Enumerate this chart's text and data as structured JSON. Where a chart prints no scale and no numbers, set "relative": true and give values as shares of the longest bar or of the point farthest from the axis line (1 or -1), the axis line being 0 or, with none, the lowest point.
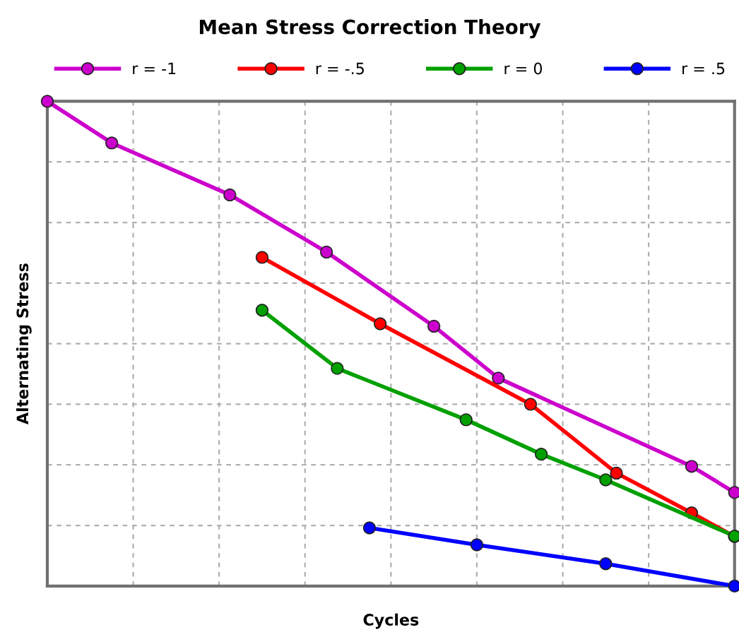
{
  "chart_data": {
    "type": "line",
    "title": "Mean Stress Correction Theory",
    "xlabel": "Cycles",
    "ylabel": "Alternating Stress",
    "relative": true,
    "grid": true,
    "legend": "top",
    "marker": "circle",
    "line_style": "solid",
    "categories": [
      null,
      null,
      null,
      null,
      null,
      null,
      null,
      null,
      null,
      null,
      null,
      null,
      null,
      null,
      null,
      null,
      null,
      null,
      null,
      null,
      null,
      null,
      null,
      null,
      null,
      null,
      null,
      null,
      null,
      null,
      null,
      null,
      null,
      null,
      null,
      null,
      null,
      null,
      null,
      null,
      null,
      null,
      null,
      null,
      null,
      null,
      null,
      null,
      null,
      null,
      null,
      null,
      null,
      null,
      null,
      null,
      null,
      null,
      null,
      null,
      null,
      null,
      null,
      null,
      null
    ],
    "series": [
      {
        "name": "r = -1",
        "color": "#cc00cc",
        "values": [
          1,
          null,
          null,
          null,
          null,
          null,
          0.914,
          null,
          null,
          null,
          null,
          null,
          null,
          null,
          null,
          null,
          null,
          0.807,
          null,
          null,
          null,
          null,
          null,
          null,
          null,
          null,
          0.689,
          null,
          null,
          null,
          null,
          null,
          null,
          null,
          null,
          null,
          0.536,
          null,
          null,
          null,
          null,
          null,
          0.429,
          null,
          null,
          null,
          null,
          null,
          null,
          null,
          null,
          null,
          null,
          null,
          null,
          null,
          null,
          null,
          null,
          null,
          0.247,
          null,
          null,
          null,
          0.193
        ]
      },
      {
        "name": "r = -.5",
        "color": "#ff0000",
        "values": [
          null,
          null,
          null,
          null,
          null,
          null,
          null,
          null,
          null,
          null,
          null,
          null,
          null,
          null,
          null,
          null,
          null,
          null,
          null,
          null,
          0.678,
          null,
          null,
          null,
          null,
          null,
          null,
          null,
          null,
          null,
          null,
          0.541,
          null,
          null,
          null,
          null,
          null,
          null,
          null,
          null,
          null,
          null,
          null,
          null,
          null,
          0.375,
          null,
          null,
          null,
          null,
          null,
          null,
          null,
          0.233,
          null,
          null,
          null,
          null,
          null,
          null,
          0.151,
          null,
          null,
          null,
          0.102
        ]
      },
      {
        "name": "r = 0",
        "color": "#00a000",
        "values": [
          null,
          null,
          null,
          null,
          null,
          null,
          null,
          null,
          null,
          null,
          null,
          null,
          null,
          null,
          null,
          null,
          null,
          null,
          null,
          null,
          0.569,
          null,
          null,
          null,
          null,
          null,
          null,
          0.449,
          null,
          null,
          null,
          null,
          null,
          null,
          null,
          null,
          null,
          null,
          null,
          0.343,
          null,
          null,
          null,
          null,
          null,
          null,
          0.272,
          null,
          null,
          null,
          null,
          null,
          0.219,
          null,
          null,
          null,
          null,
          null,
          null,
          null,
          null,
          null,
          null,
          null,
          0.103
        ]
      },
      {
        "name": "r = .5",
        "color": "#0000ff",
        "values": [
          null,
          null,
          null,
          null,
          null,
          null,
          null,
          null,
          null,
          null,
          null,
          null,
          null,
          null,
          null,
          null,
          null,
          null,
          null,
          null,
          null,
          null,
          null,
          null,
          null,
          null,
          null,
          null,
          null,
          null,
          0.12,
          null,
          null,
          null,
          null,
          null,
          null,
          null,
          null,
          null,
          0.085,
          null,
          null,
          null,
          null,
          null,
          null,
          null,
          null,
          null,
          null,
          null,
          0.046,
          null,
          null,
          null,
          null,
          null,
          null,
          null,
          null,
          null,
          null,
          null,
          0
        ]
      }
    ]
  }
}
